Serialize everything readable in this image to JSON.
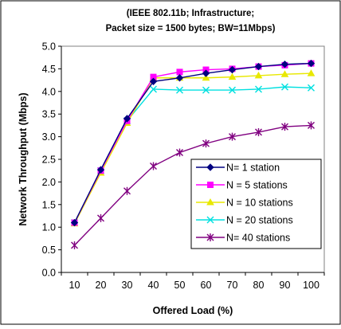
{
  "chart_data": {
    "type": "line",
    "title_lines": [
      "(IEEE 802.11b; Infrastructure;",
      "Packet size = 1500 bytes; BW=11Mbps)"
    ],
    "xlabel": "Offered Load (%)",
    "ylabel": "Network Throughput (Mbps)",
    "x": [
      10,
      20,
      30,
      40,
      50,
      60,
      70,
      80,
      90,
      100
    ],
    "x_tick_labels": [
      "10",
      "20",
      "30",
      "40",
      "50",
      "60",
      "70",
      "80",
      "90",
      "100"
    ],
    "ylim": [
      0,
      5
    ],
    "y_ticks": [
      "0.0",
      "0.5",
      "1.0",
      "1.5",
      "2.0",
      "2.5",
      "3.0",
      "3.5",
      "4.0",
      "4.5",
      "5.0"
    ],
    "grid": "horizontal-off",
    "legend_position": "bottom-right",
    "series": [
      {
        "name": "N= 1 station",
        "color": "#000080",
        "marker": "diamond",
        "values": [
          1.1,
          2.27,
          3.4,
          4.22,
          4.3,
          4.4,
          4.48,
          4.55,
          4.6,
          4.62
        ]
      },
      {
        "name": "N = 5 stations",
        "color": "#FF00FF",
        "marker": "square",
        "values": [
          1.1,
          2.25,
          3.35,
          4.32,
          4.43,
          4.48,
          4.5,
          4.55,
          4.58,
          4.62
        ]
      },
      {
        "name": "N = 10 stations",
        "color": "#E8E800",
        "marker": "triangle",
        "values": [
          1.08,
          2.2,
          3.3,
          4.3,
          4.3,
          4.3,
          4.32,
          4.35,
          4.38,
          4.4
        ]
      },
      {
        "name": "N = 20 stations",
        "color": "#00E0E0",
        "marker": "x",
        "values": [
          1.1,
          2.25,
          3.35,
          4.05,
          4.03,
          4.03,
          4.03,
          4.05,
          4.1,
          4.08
        ]
      },
      {
        "name": "N= 40 stations",
        "color": "#800080",
        "marker": "star",
        "values": [
          0.6,
          1.2,
          1.8,
          2.35,
          2.65,
          2.85,
          3.0,
          3.1,
          3.22,
          3.25
        ]
      }
    ]
  }
}
